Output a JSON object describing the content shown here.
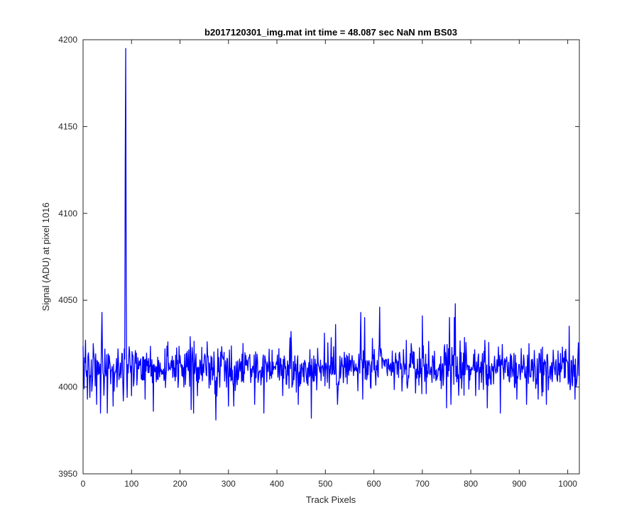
{
  "chart_data": {
    "type": "line",
    "title": "b2017120301_img.mat int time = 48.087 sec  NaN nm BS03",
    "xlabel": "Track Pixels",
    "ylabel": "Signal (ADU) at pixel 1016",
    "xlim": [
      0,
      1024
    ],
    "ylim": [
      3950,
      4200
    ],
    "xticks": [
      0,
      100,
      200,
      300,
      400,
      500,
      600,
      700,
      800,
      900,
      1000
    ],
    "yticks": [
      3950,
      4000,
      4050,
      4100,
      4150,
      4200
    ],
    "grid": false,
    "line_color": "#0000ff",
    "series": [
      {
        "baseline": 4011,
        "noise_half_range": 12,
        "n_points": 1024,
        "x": [
          2,
          5,
          9,
          14,
          21,
          28,
          36,
          39,
          50,
          62,
          72,
          83,
          85,
          87,
          88,
          89,
          91,
          100,
          128,
          145,
          175,
          221,
          223,
          228,
          236,
          274,
          300,
          311,
          354,
          373,
          429,
          440,
          444,
          471,
          498,
          521,
          525,
          573,
          577,
          581,
          612,
          700,
          750,
          756,
          759,
          766,
          768,
          810,
          834,
          861,
          895,
          915,
          939,
          956,
          1003,
          1015
        ],
        "y": [
          3999,
          4027,
          3993,
          3994,
          4025,
          3990,
          3985,
          4043,
          3985,
          3989,
          4022,
          3992,
          4022,
          4130,
          4195,
          4060,
          3994,
          3995,
          3993,
          3986,
          4026,
          4029,
          3987,
          3985,
          3995,
          3981,
          3989,
          3989,
          3990,
          3985,
          4032,
          3997,
          3990,
          3982,
          4031,
          4036,
          3990,
          4043,
          3993,
          4040,
          4046,
          4041,
          3988,
          4040,
          3990,
          4040,
          4048,
          3995,
          3988,
          3985,
          3993,
          3990,
          3993,
          3990,
          4035,
          3993
        ]
      }
    ]
  }
}
